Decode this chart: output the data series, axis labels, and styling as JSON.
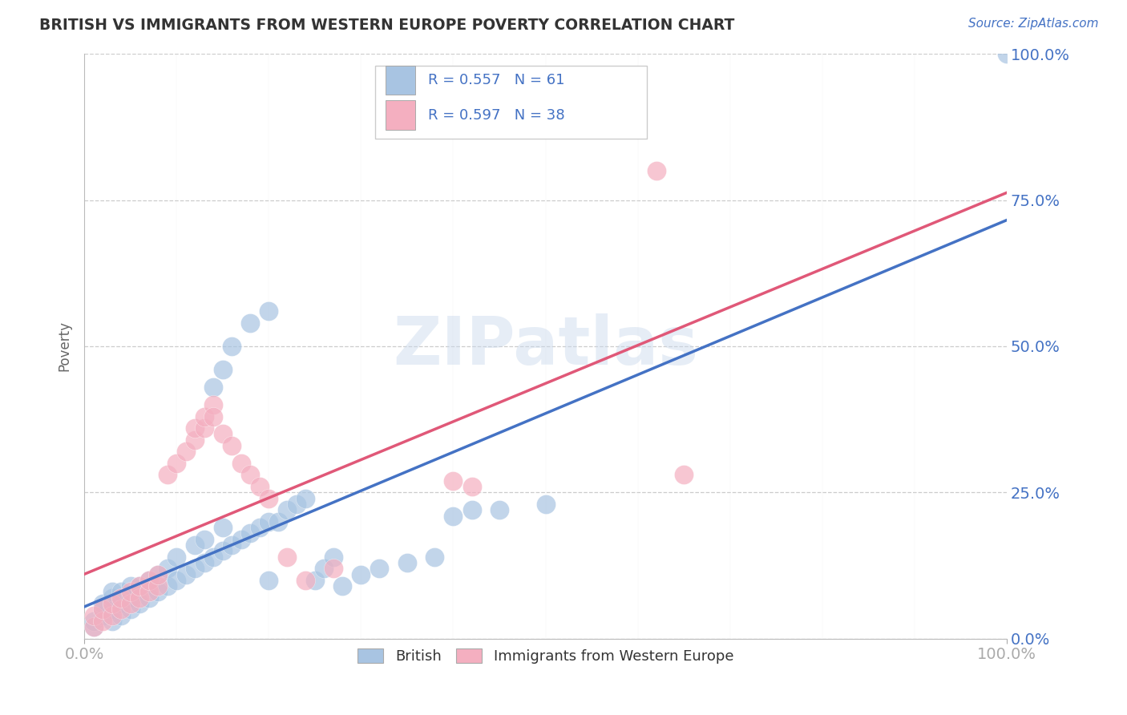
{
  "title": "BRITISH VS IMMIGRANTS FROM WESTERN EUROPE POVERTY CORRELATION CHART",
  "source_text": "Source: ZipAtlas.com",
  "ylabel": "Poverty",
  "xlim": [
    0,
    1
  ],
  "ylim": [
    0,
    1
  ],
  "background_color": "#ffffff",
  "grid_color": "#cccccc",
  "title_color": "#333333",
  "axis_label_color": "#4472c4",
  "british_color": "#a8c4e2",
  "immigrants_color": "#f4afc0",
  "british_line_color": "#4472c4",
  "immigrants_line_color": "#e05878",
  "british_R": 0.557,
  "british_N": 61,
  "immigrants_R": 0.597,
  "immigrants_N": 38,
  "watermark_text": "ZIPatlas",
  "british_scatter": [
    [
      0.01,
      0.02
    ],
    [
      0.01,
      0.03
    ],
    [
      0.02,
      0.04
    ],
    [
      0.02,
      0.05
    ],
    [
      0.02,
      0.06
    ],
    [
      0.03,
      0.03
    ],
    [
      0.03,
      0.05
    ],
    [
      0.03,
      0.07
    ],
    [
      0.03,
      0.08
    ],
    [
      0.04,
      0.04
    ],
    [
      0.04,
      0.06
    ],
    [
      0.04,
      0.08
    ],
    [
      0.05,
      0.05
    ],
    [
      0.05,
      0.07
    ],
    [
      0.05,
      0.09
    ],
    [
      0.06,
      0.06
    ],
    [
      0.06,
      0.09
    ],
    [
      0.07,
      0.07
    ],
    [
      0.07,
      0.1
    ],
    [
      0.08,
      0.08
    ],
    [
      0.08,
      0.11
    ],
    [
      0.09,
      0.09
    ],
    [
      0.09,
      0.12
    ],
    [
      0.1,
      0.1
    ],
    [
      0.1,
      0.14
    ],
    [
      0.11,
      0.11
    ],
    [
      0.12,
      0.12
    ],
    [
      0.12,
      0.16
    ],
    [
      0.13,
      0.13
    ],
    [
      0.13,
      0.17
    ],
    [
      0.14,
      0.14
    ],
    [
      0.15,
      0.15
    ],
    [
      0.15,
      0.19
    ],
    [
      0.16,
      0.16
    ],
    [
      0.17,
      0.17
    ],
    [
      0.18,
      0.18
    ],
    [
      0.19,
      0.19
    ],
    [
      0.2,
      0.1
    ],
    [
      0.2,
      0.2
    ],
    [
      0.21,
      0.2
    ],
    [
      0.22,
      0.22
    ],
    [
      0.23,
      0.23
    ],
    [
      0.24,
      0.24
    ],
    [
      0.25,
      0.1
    ],
    [
      0.26,
      0.12
    ],
    [
      0.27,
      0.14
    ],
    [
      0.28,
      0.09
    ],
    [
      0.3,
      0.11
    ],
    [
      0.32,
      0.12
    ],
    [
      0.35,
      0.13
    ],
    [
      0.38,
      0.14
    ],
    [
      0.4,
      0.21
    ],
    [
      0.42,
      0.22
    ],
    [
      0.45,
      0.22
    ],
    [
      0.5,
      0.23
    ],
    [
      0.14,
      0.43
    ],
    [
      0.15,
      0.46
    ],
    [
      0.16,
      0.5
    ],
    [
      0.18,
      0.54
    ],
    [
      0.2,
      0.56
    ],
    [
      1.0,
      1.0
    ]
  ],
  "immigrants_scatter": [
    [
      0.01,
      0.02
    ],
    [
      0.01,
      0.04
    ],
    [
      0.02,
      0.03
    ],
    [
      0.02,
      0.05
    ],
    [
      0.03,
      0.04
    ],
    [
      0.03,
      0.06
    ],
    [
      0.04,
      0.05
    ],
    [
      0.04,
      0.07
    ],
    [
      0.05,
      0.06
    ],
    [
      0.05,
      0.08
    ],
    [
      0.06,
      0.07
    ],
    [
      0.06,
      0.09
    ],
    [
      0.07,
      0.08
    ],
    [
      0.07,
      0.1
    ],
    [
      0.08,
      0.09
    ],
    [
      0.08,
      0.11
    ],
    [
      0.09,
      0.28
    ],
    [
      0.1,
      0.3
    ],
    [
      0.11,
      0.32
    ],
    [
      0.12,
      0.34
    ],
    [
      0.12,
      0.36
    ],
    [
      0.13,
      0.36
    ],
    [
      0.13,
      0.38
    ],
    [
      0.14,
      0.4
    ],
    [
      0.14,
      0.38
    ],
    [
      0.15,
      0.35
    ],
    [
      0.16,
      0.33
    ],
    [
      0.17,
      0.3
    ],
    [
      0.18,
      0.28
    ],
    [
      0.19,
      0.26
    ],
    [
      0.2,
      0.24
    ],
    [
      0.22,
      0.14
    ],
    [
      0.24,
      0.1
    ],
    [
      0.27,
      0.12
    ],
    [
      0.4,
      0.27
    ],
    [
      0.42,
      0.26
    ],
    [
      0.62,
      0.8
    ],
    [
      0.65,
      0.28
    ]
  ]
}
